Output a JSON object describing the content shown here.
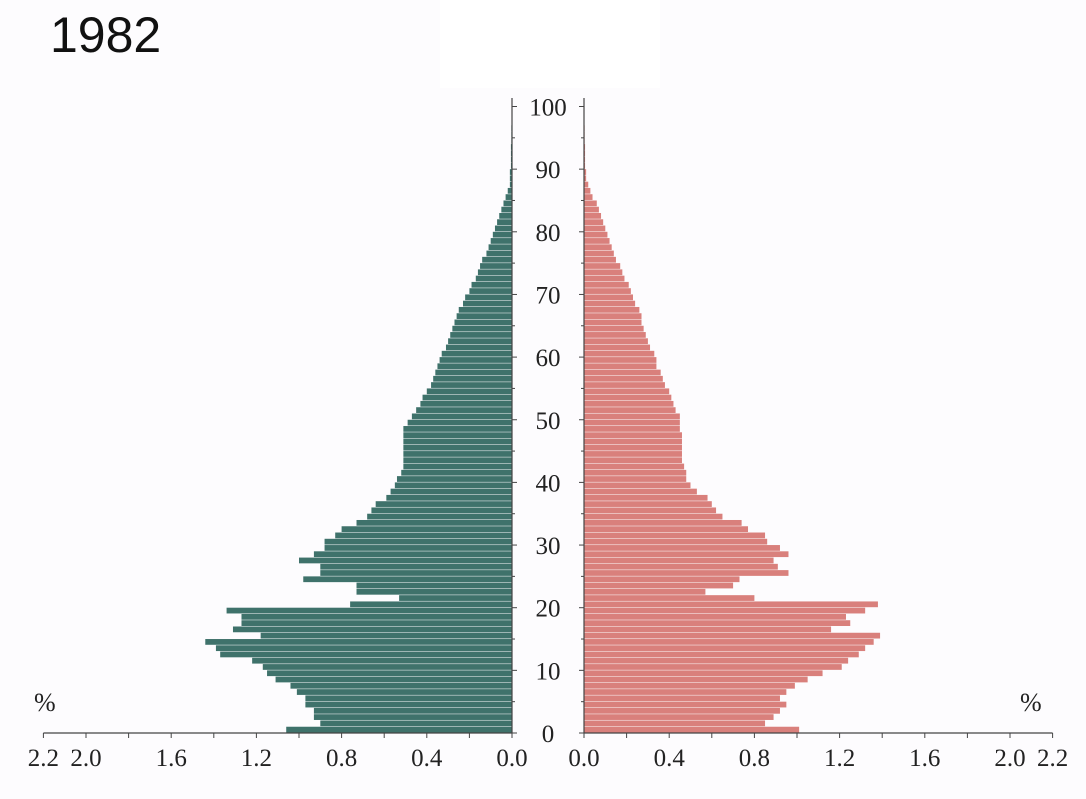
{
  "title": "1982",
  "unit_label": "%",
  "chart_data": {
    "type": "bar",
    "subtype": "population-pyramid",
    "title": "1982",
    "age_ticks": [
      "0",
      "10",
      "20",
      "30",
      "40",
      "50",
      "60",
      "70",
      "80",
      "90",
      "100"
    ],
    "x_ticks": [
      "2.2",
      "2.0",
      "1.6",
      "1.2",
      "0.8",
      "0.4",
      "0.0"
    ],
    "x_unit": "%",
    "xlim": [
      0,
      2.2
    ],
    "ylim": [
      0,
      100
    ],
    "colors": {
      "left": "#3f726b",
      "right": "#d9807c"
    },
    "ages": [
      0,
      1,
      2,
      3,
      4,
      5,
      6,
      7,
      8,
      9,
      10,
      11,
      12,
      13,
      14,
      15,
      16,
      17,
      18,
      19,
      20,
      21,
      22,
      23,
      24,
      25,
      26,
      27,
      28,
      29,
      30,
      31,
      32,
      33,
      34,
      35,
      36,
      37,
      38,
      39,
      40,
      41,
      42,
      43,
      44,
      45,
      46,
      47,
      48,
      49,
      50,
      51,
      52,
      53,
      54,
      55,
      56,
      57,
      58,
      59,
      60,
      61,
      62,
      63,
      64,
      65,
      66,
      67,
      68,
      69,
      70,
      71,
      72,
      73,
      74,
      75,
      76,
      77,
      78,
      79,
      80,
      81,
      82,
      83,
      84,
      85,
      86,
      87,
      88,
      89,
      90,
      91,
      92,
      93,
      94,
      95,
      96,
      97,
      98,
      99,
      100
    ],
    "series": [
      {
        "side": "left",
        "values": [
          1.06,
          0.9,
          0.93,
          0.93,
          0.97,
          0.97,
          1.01,
          1.04,
          1.11,
          1.15,
          1.17,
          1.22,
          1.37,
          1.39,
          1.44,
          1.18,
          1.31,
          1.27,
          1.27,
          1.34,
          0.76,
          0.53,
          0.73,
          0.73,
          0.98,
          0.9,
          0.9,
          1.0,
          0.93,
          0.88,
          0.88,
          0.83,
          0.8,
          0.73,
          0.68,
          0.66,
          0.64,
          0.59,
          0.57,
          0.55,
          0.54,
          0.52,
          0.51,
          0.51,
          0.51,
          0.51,
          0.51,
          0.51,
          0.51,
          0.49,
          0.47,
          0.45,
          0.43,
          0.42,
          0.4,
          0.38,
          0.37,
          0.36,
          0.35,
          0.34,
          0.33,
          0.31,
          0.3,
          0.29,
          0.28,
          0.27,
          0.26,
          0.25,
          0.23,
          0.22,
          0.2,
          0.19,
          0.17,
          0.16,
          0.15,
          0.14,
          0.12,
          0.11,
          0.1,
          0.09,
          0.08,
          0.07,
          0.06,
          0.05,
          0.04,
          0.03,
          0.02,
          0.01,
          0.01,
          0.01,
          0.005,
          0.005,
          0.005,
          0.005,
          0.003,
          0.003,
          0.003,
          0.002,
          0.002,
          0.002,
          0.002
        ]
      },
      {
        "side": "right",
        "values": [
          1.01,
          0.85,
          0.89,
          0.92,
          0.95,
          0.92,
          0.95,
          0.99,
          1.05,
          1.12,
          1.21,
          1.24,
          1.29,
          1.32,
          1.36,
          1.39,
          1.16,
          1.25,
          1.23,
          1.32,
          1.38,
          0.8,
          0.57,
          0.7,
          0.73,
          0.96,
          0.91,
          0.89,
          0.96,
          0.92,
          0.86,
          0.85,
          0.77,
          0.74,
          0.65,
          0.62,
          0.6,
          0.58,
          0.53,
          0.5,
          0.48,
          0.48,
          0.47,
          0.46,
          0.46,
          0.46,
          0.46,
          0.46,
          0.45,
          0.45,
          0.45,
          0.43,
          0.42,
          0.41,
          0.4,
          0.38,
          0.37,
          0.36,
          0.34,
          0.34,
          0.33,
          0.31,
          0.3,
          0.29,
          0.28,
          0.27,
          0.27,
          0.26,
          0.24,
          0.23,
          0.22,
          0.21,
          0.19,
          0.18,
          0.17,
          0.15,
          0.14,
          0.13,
          0.12,
          0.11,
          0.1,
          0.09,
          0.08,
          0.07,
          0.06,
          0.04,
          0.03,
          0.02,
          0.01,
          0.01,
          0.005,
          0.005,
          0.005,
          0.005,
          0.003,
          0.003,
          0.003,
          0.002,
          0.002,
          0.002,
          0.002
        ]
      }
    ]
  }
}
